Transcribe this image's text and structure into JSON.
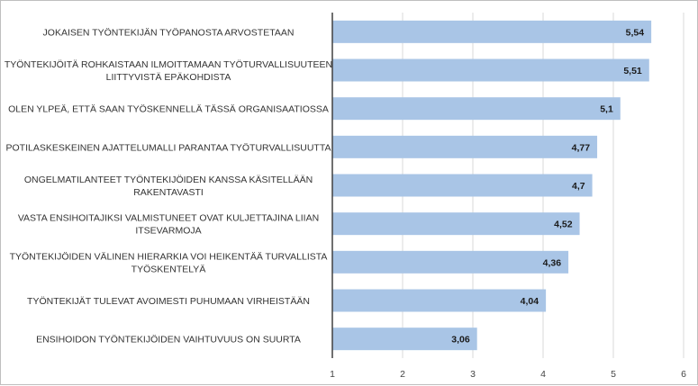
{
  "chart_data": {
    "type": "bar",
    "orientation": "horizontal",
    "categories": [
      [
        "JOKAISEN TYÖNTEKIJÄN TYÖPANOSTA ARVOSTETAAN"
      ],
      [
        "TYÖNTEKIJÖITÄ ROHKAISTAAN ILMOITTAMAAN TYÖTURVALLISUUTEEN",
        "LIITTYVISTÄ EPÄKOHDISTA"
      ],
      [
        "OLEN YLPEÄ, ETTÄ SAAN TYÖSKENNELLÄ TÄSSÄ ORGANISAATIOSSA"
      ],
      [
        "POTILASKESKEINEN AJATTELUMALLI PARANTAA TYÖTURVALLISUUTTA"
      ],
      [
        "ONGELMATILANTEET TYÖNTEKIJÖIDEN KANSSA KÄSITELLÄÄN",
        "RAKENTAVASTI"
      ],
      [
        "VASTA ENSIHOITAJIKSI VALMISTUNEET OVAT KULJETTAJINA LIIAN",
        "ITSEVARMOJA"
      ],
      [
        "TYÖNTEKIJÖIDEN VÄLINEN HIERARKIA VOI HEIKENTÄÄ TURVALLISTA",
        "TYÖSKENTELYÄ"
      ],
      [
        "TYÖNTEKIJÄT TULEVAT AVOIMESTI PUHUMAAN VIRHEISTÄÄN"
      ],
      [
        "ENSIHOIDON TYÖNTEKIJÖIDEN VAIHTUVUUS ON SUURTA"
      ]
    ],
    "values": [
      5.54,
      5.51,
      5.1,
      4.77,
      4.7,
      4.52,
      4.36,
      4.04,
      3.06
    ],
    "data_labels": [
      "5,54",
      "5,51",
      "5,1",
      "4,77",
      "4,7",
      "4,52",
      "4,36",
      "4,04",
      "3,06"
    ],
    "xlim": [
      1,
      6
    ],
    "x_ticks": [
      "1",
      "2",
      "3",
      "4",
      "5",
      "6"
    ],
    "grid": true,
    "legend": "none",
    "bar_color": "#a9c5e6",
    "grid_color": "#d9d9d9",
    "axis_color": "#404040"
  }
}
